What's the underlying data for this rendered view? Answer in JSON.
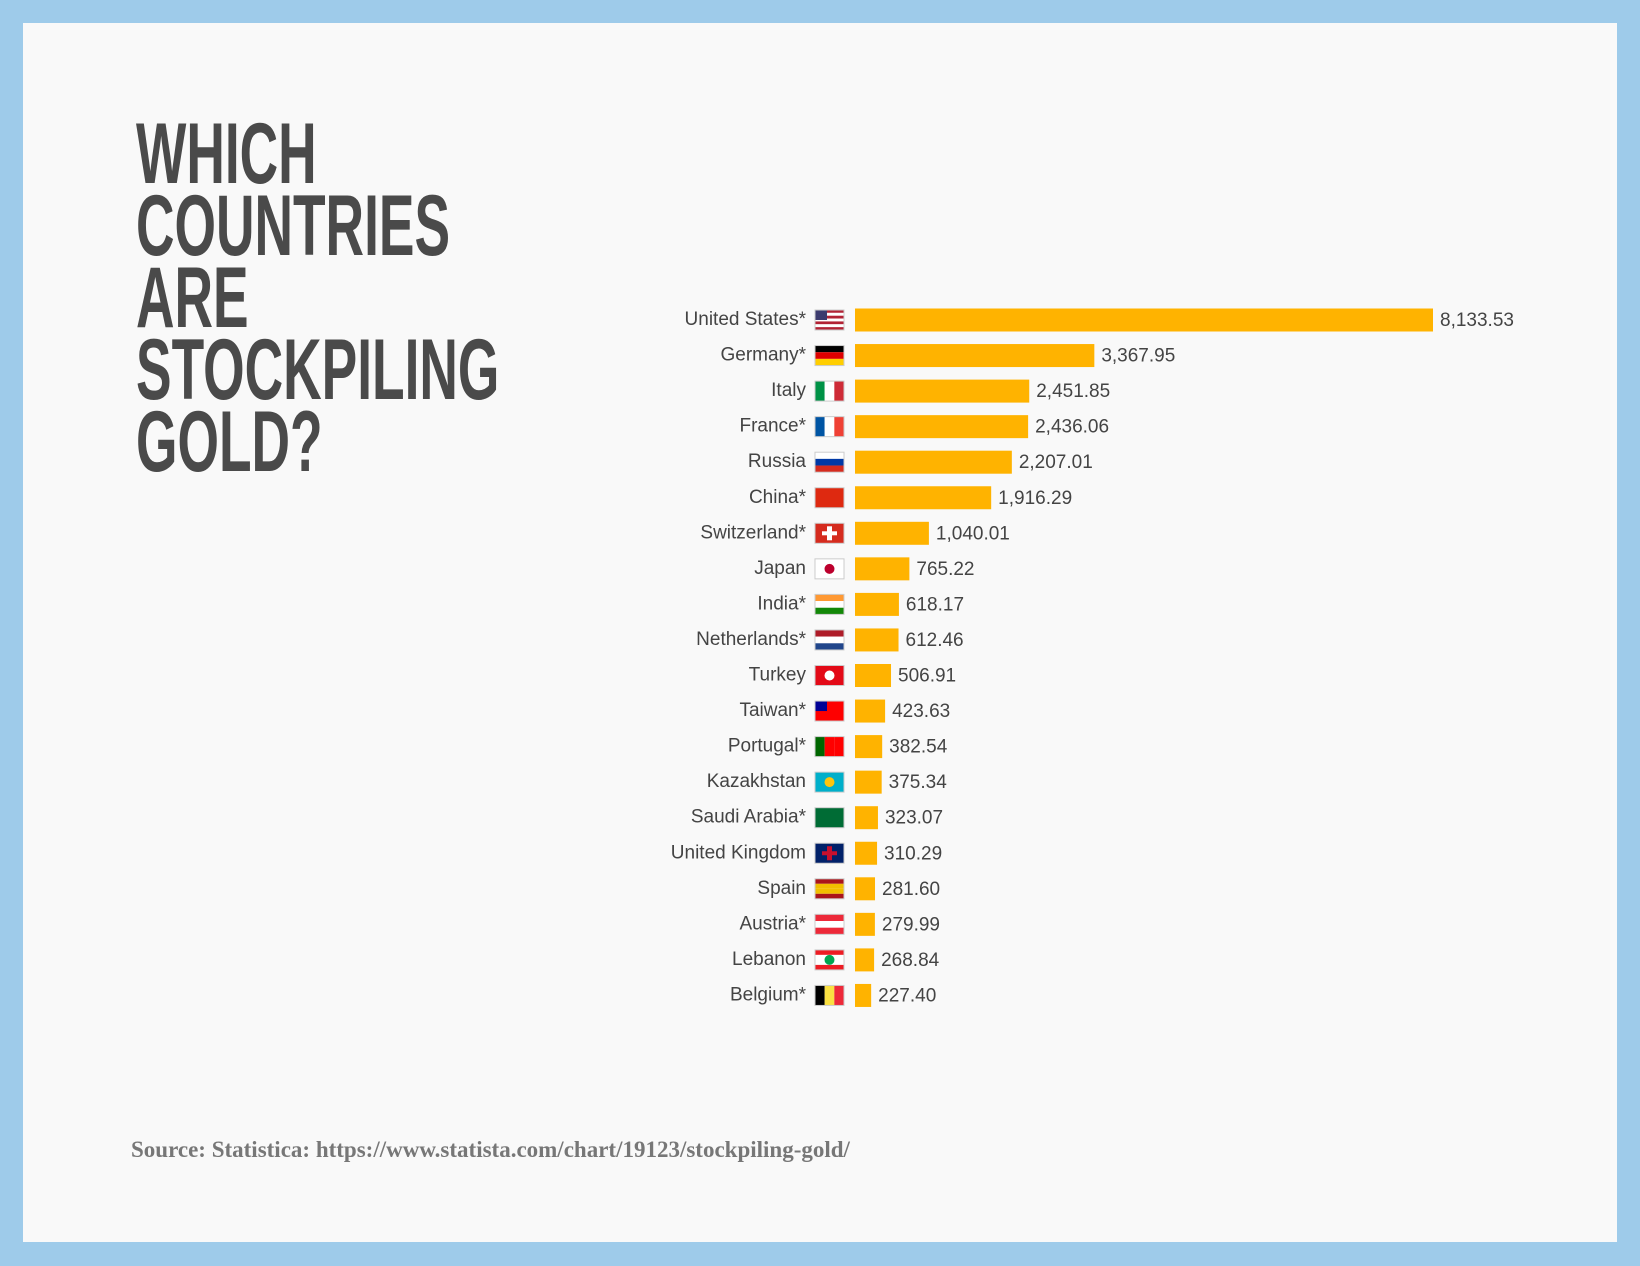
{
  "chart_data": {
    "type": "bar",
    "orientation": "horizontal",
    "title": "WHICH COUNTRIES ARE STOCKPILING GOLD?",
    "source": "Source: Statistica: https://www.statista.com/chart/19123/stockpiling-gold/",
    "color": "#ffb300",
    "categories": [
      "United States*",
      "Germany*",
      "Italy",
      "France*",
      "Russia",
      "China*",
      "Switzerland*",
      "Japan",
      "India*",
      "Netherlands*",
      "Turkey",
      "Taiwan*",
      "Portugal*",
      "Kazakhstan",
      "Saudi Arabia*",
      "United Kingdom",
      "Spain",
      "Austria*",
      "Lebanon",
      "Belgium*"
    ],
    "values": [
      8133.53,
      3367.95,
      2451.85,
      2436.06,
      2207.01,
      1916.29,
      1040.01,
      765.22,
      618.17,
      612.46,
      506.91,
      423.63,
      382.54,
      375.34,
      323.07,
      310.29,
      281.6,
      279.99,
      268.84,
      227.4
    ],
    "value_labels": [
      "8,133.53",
      "3,367.95",
      "2,451.85",
      "2,436.06",
      "2,207.01",
      "1,916.29",
      "1,040.01",
      "765.22",
      "618.17",
      "612.46",
      "506.91",
      "423.63",
      "382.54",
      "375.34",
      "323.07",
      "310.29",
      "281.60",
      "279.99",
      "268.84",
      "227.40"
    ]
  }
}
